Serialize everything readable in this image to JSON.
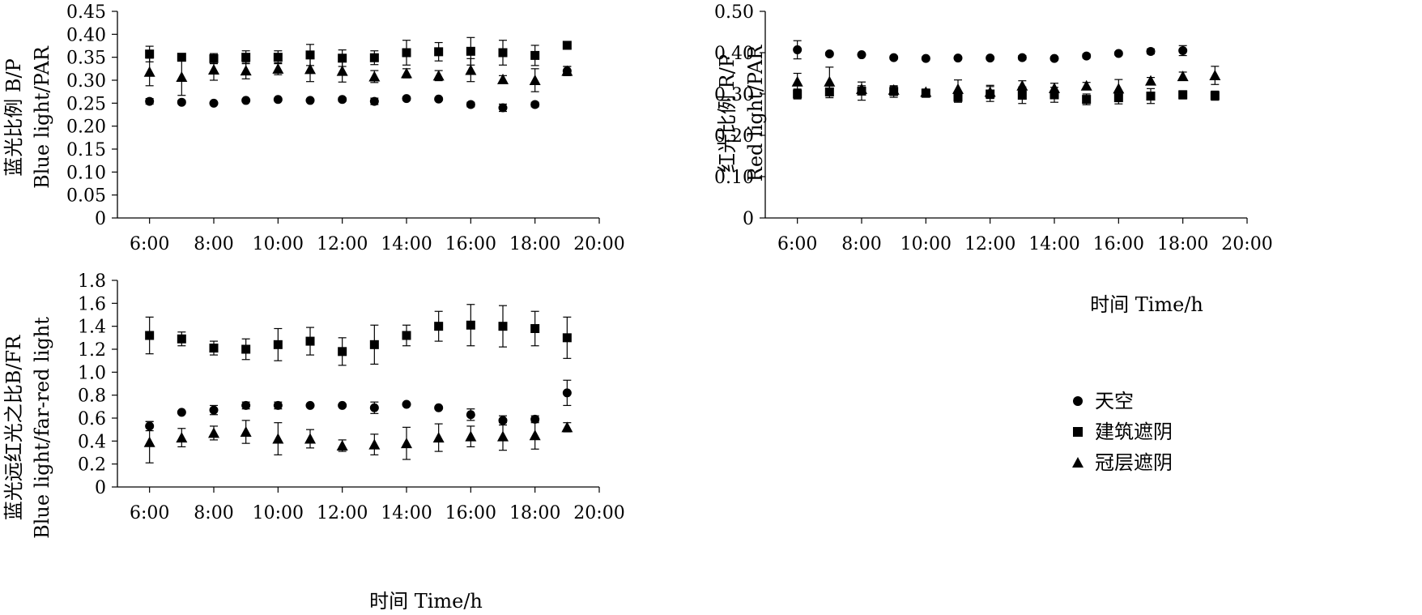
{
  "legend": [
    {
      "label": "天空",
      "marker": "circle"
    },
    {
      "label": "建筑遮阴",
      "marker": "square"
    },
    {
      "label": "冠层遮阴",
      "marker": "triangle"
    }
  ],
  "colors": {
    "marks": "#000000",
    "background": "#ffffff"
  },
  "chart_data": [
    {
      "type": "scatter",
      "id": "bp",
      "title": "",
      "xlabel": "",
      "ylabel_lines": [
        "蓝光比例 B/P",
        "Blue light/PAR"
      ],
      "xlim": [
        5,
        20
      ],
      "ylim": [
        0,
        0.45
      ],
      "xticks": [
        6,
        8,
        10,
        12,
        14,
        16,
        18,
        20
      ],
      "xtick_labels": [
        "6:00",
        "8:00",
        "10:00",
        "12:00",
        "14:00",
        "16:00",
        "18:00",
        "20:00"
      ],
      "yticks": [
        0,
        0.05,
        0.1,
        0.15,
        0.2,
        0.25,
        0.3,
        0.35,
        0.4,
        0.45
      ],
      "ytick_labels": [
        "0",
        "0.05",
        "0.10",
        "0.15",
        "0.20",
        "0.25",
        "0.30",
        "0.35",
        "0.40",
        "0.45"
      ],
      "grid": false,
      "x": [
        6,
        7,
        8,
        9,
        10,
        11,
        12,
        13,
        14,
        15,
        16,
        17,
        18,
        19
      ],
      "series": [
        {
          "name": "天空",
          "marker": "circle",
          "values": [
            0.254,
            0.252,
            0.25,
            0.256,
            0.258,
            0.256,
            0.258,
            0.254,
            0.26,
            0.259,
            0.247,
            0.24,
            0.247,
            0.32
          ],
          "errors": [
            0.006,
            0.004,
            0.003,
            0.003,
            0.003,
            0.003,
            0.004,
            0.007,
            0.004,
            0.003,
            0.005,
            0.008,
            0.005,
            0.01
          ]
        },
        {
          "name": "建筑遮阴",
          "marker": "square",
          "values": [
            0.357,
            0.35,
            0.347,
            0.35,
            0.35,
            0.355,
            0.348,
            0.349,
            0.36,
            0.362,
            0.363,
            0.36,
            0.354,
            0.376
          ],
          "errors": [
            0.017,
            0.005,
            0.011,
            0.014,
            0.014,
            0.023,
            0.018,
            0.015,
            0.027,
            0.02,
            0.03,
            0.027,
            0.022,
            0.004
          ]
        },
        {
          "name": "冠层遮阴",
          "marker": "triangle",
          "values": [
            0.318,
            0.307,
            0.323,
            0.321,
            0.325,
            0.324,
            0.32,
            0.308,
            0.315,
            0.31,
            0.322,
            0.302,
            0.3,
            0.32
          ],
          "errors": [
            0.03,
            0.04,
            0.023,
            0.018,
            0.013,
            0.027,
            0.024,
            0.013,
            0.01,
            0.011,
            0.025,
            0.008,
            0.025,
            0.01
          ]
        }
      ]
    },
    {
      "type": "scatter",
      "id": "rp",
      "title": "",
      "xlabel": "时间 Time/h",
      "ylabel_lines": [
        "红光比例 R/P",
        "Red light/PAR"
      ],
      "xlim": [
        5,
        20
      ],
      "ylim": [
        0,
        0.5
      ],
      "xticks": [
        6,
        8,
        10,
        12,
        14,
        16,
        18,
        20
      ],
      "xtick_labels": [
        "6:00",
        "8:00",
        "10:00",
        "12:00",
        "14:00",
        "16:00",
        "18:00",
        "20:00"
      ],
      "yticks": [
        0,
        0.1,
        0.2,
        0.3,
        0.4,
        0.5
      ],
      "ytick_labels": [
        "0",
        "0.10",
        "0.20",
        "0.30",
        "0.40",
        "0.50"
      ],
      "grid": false,
      "x": [
        6,
        7,
        8,
        9,
        10,
        11,
        12,
        13,
        14,
        15,
        16,
        17,
        18,
        19
      ],
      "series": [
        {
          "name": "天空",
          "marker": "circle",
          "values": [
            0.407,
            0.397,
            0.395,
            0.388,
            0.386,
            0.387,
            0.387,
            0.388,
            0.386,
            0.392,
            0.398,
            0.403,
            0.405,
            null
          ],
          "errors": [
            0.022,
            0.004,
            0.003,
            0.004,
            0.004,
            0.003,
            0.003,
            0.005,
            0.004,
            0.005,
            0.004,
            0.006,
            0.012,
            null
          ]
        },
        {
          "name": "建筑遮阴",
          "marker": "square",
          "values": [
            0.3,
            0.305,
            0.307,
            0.306,
            0.302,
            0.292,
            0.3,
            0.297,
            0.298,
            0.287,
            0.291,
            0.295,
            0.298,
            0.296
          ],
          "errors": [
            0.012,
            0.014,
            0.022,
            0.014,
            0.01,
            0.012,
            0.018,
            0.02,
            0.018,
            0.013,
            0.015,
            0.018,
            0.01,
            0.011
          ]
        },
        {
          "name": "冠层遮阴",
          "marker": "triangle",
          "values": [
            0.33,
            0.33,
            0.312,
            0.31,
            0.305,
            0.312,
            0.305,
            0.32,
            0.314,
            0.32,
            0.313,
            0.332,
            0.343,
            0.345
          ],
          "errors": [
            0.02,
            0.035,
            0.008,
            0.008,
            0.006,
            0.022,
            0.016,
            0.012,
            0.012,
            0.008,
            0.022,
            0.008,
            0.01,
            0.022
          ]
        }
      ]
    },
    {
      "type": "scatter",
      "id": "bfr",
      "title": "",
      "xlabel": "时间 Time/h",
      "ylabel_lines": [
        "蓝光远红光之比B/FR",
        "Blue light/far-red light"
      ],
      "xlim": [
        5,
        20
      ],
      "ylim": [
        0,
        1.8
      ],
      "xticks": [
        6,
        8,
        10,
        12,
        14,
        16,
        18,
        20
      ],
      "xtick_labels": [
        "6:00",
        "8:00",
        "10:00",
        "12:00",
        "14:00",
        "16:00",
        "18:00",
        "20:00"
      ],
      "yticks": [
        0,
        0.2,
        0.4,
        0.6,
        0.8,
        1.0,
        1.2,
        1.4,
        1.6,
        1.8
      ],
      "ytick_labels": [
        "0",
        "0.2",
        "0.4",
        "0.6",
        "0.8",
        "1.0",
        "1.2",
        "1.4",
        "1.6",
        "1.8"
      ],
      "grid": false,
      "x": [
        6,
        7,
        8,
        9,
        10,
        11,
        12,
        13,
        14,
        15,
        16,
        17,
        18,
        19
      ],
      "series": [
        {
          "name": "天空",
          "marker": "circle",
          "values": [
            0.53,
            0.65,
            0.67,
            0.71,
            0.71,
            0.71,
            0.71,
            0.69,
            0.72,
            0.69,
            0.63,
            0.58,
            0.59,
            0.82
          ],
          "errors": [
            0.04,
            0.01,
            0.04,
            0.03,
            0.03,
            0.01,
            0.01,
            0.05,
            0.01,
            0.01,
            0.05,
            0.04,
            0.03,
            0.11
          ]
        },
        {
          "name": "建筑遮阴",
          "marker": "square",
          "values": [
            1.32,
            1.29,
            1.21,
            1.2,
            1.24,
            1.27,
            1.18,
            1.24,
            1.32,
            1.4,
            1.41,
            1.4,
            1.38,
            1.3
          ],
          "errors": [
            0.16,
            0.06,
            0.06,
            0.09,
            0.14,
            0.12,
            0.12,
            0.17,
            0.09,
            0.13,
            0.18,
            0.18,
            0.15,
            0.18
          ]
        },
        {
          "name": "冠层遮阴",
          "marker": "triangle",
          "values": [
            0.39,
            0.43,
            0.47,
            0.48,
            0.42,
            0.42,
            0.36,
            0.37,
            0.38,
            0.43,
            0.44,
            0.44,
            0.45,
            0.52
          ],
          "errors": [
            0.18,
            0.08,
            0.06,
            0.1,
            0.14,
            0.08,
            0.05,
            0.09,
            0.14,
            0.12,
            0.09,
            0.12,
            0.12,
            0.04
          ]
        }
      ]
    }
  ]
}
